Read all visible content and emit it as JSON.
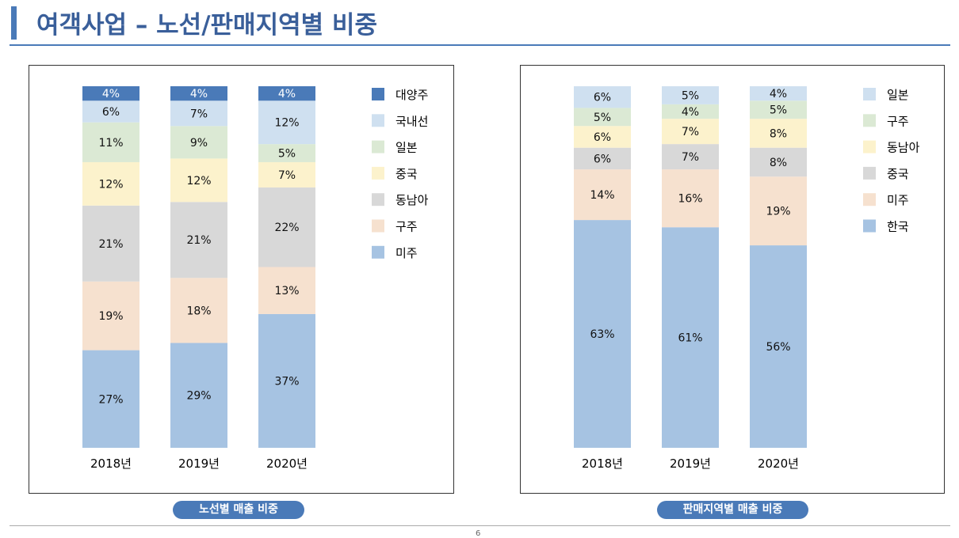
{
  "page": {
    "title": "여객사업 – 노선/판매지역별 비중",
    "page_number": "6"
  },
  "colors": {
    "accent": "#4a7ab8"
  },
  "chart_data": [
    {
      "type": "bar",
      "stacked": true,
      "caption": "노선별 매출 비중",
      "categories": [
        "2018년",
        "2019년",
        "2020년"
      ],
      "legend_position": "right",
      "series": [
        {
          "name": "미주",
          "color": "#a6c3e2",
          "values": [
            27,
            29,
            37
          ]
        },
        {
          "name": "구주",
          "color": "#f6e1cf",
          "values": [
            19,
            18,
            13
          ]
        },
        {
          "name": "동남아",
          "color": "#d8d8d8",
          "values": [
            21,
            21,
            22
          ]
        },
        {
          "name": "중국",
          "color": "#fcf2cc",
          "values": [
            12,
            12,
            7
          ]
        },
        {
          "name": "일본",
          "color": "#dbe9d4",
          "values": [
            11,
            9,
            5
          ]
        },
        {
          "name": "국내선",
          "color": "#cfe0f0",
          "values": [
            6,
            7,
            12
          ]
        },
        {
          "name": "대양주",
          "color": "#4a7ab8",
          "values": [
            4,
            4,
            4
          ]
        }
      ],
      "label_suffix": "%"
    },
    {
      "type": "bar",
      "stacked": true,
      "caption": "판매지역별 매출 비중",
      "categories": [
        "2018년",
        "2019년",
        "2020년"
      ],
      "legend_position": "right",
      "series": [
        {
          "name": "한국",
          "color": "#a6c3e2",
          "values": [
            63,
            61,
            56
          ]
        },
        {
          "name": "미주",
          "color": "#f6e1cf",
          "values": [
            14,
            16,
            19
          ]
        },
        {
          "name": "중국",
          "color": "#d8d8d8",
          "values": [
            6,
            7,
            8
          ]
        },
        {
          "name": "동남아",
          "color": "#fcf2cc",
          "values": [
            6,
            7,
            8
          ]
        },
        {
          "name": "구주",
          "color": "#dbe9d4",
          "values": [
            5,
            4,
            5
          ]
        },
        {
          "name": "일본",
          "color": "#cfe0f0",
          "values": [
            6,
            5,
            4
          ]
        }
      ],
      "label_suffix": "%"
    }
  ]
}
